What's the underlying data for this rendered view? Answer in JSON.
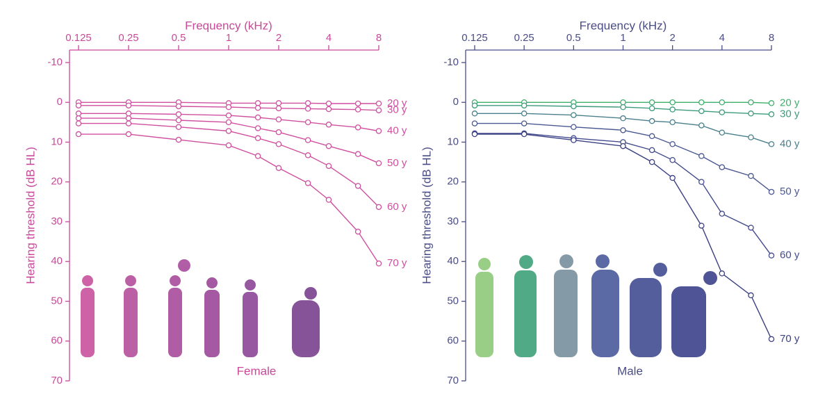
{
  "chart_data": [
    {
      "type": "line",
      "x_label": "Frequency (kHz)",
      "y_label": "Hearing threshold (dB HL)",
      "annotation": "Female",
      "x": [
        0.125,
        0.25,
        0.5,
        1,
        1.5,
        2,
        3,
        4,
        6,
        8
      ],
      "xlim": [
        0.125,
        8
      ],
      "xticks": [
        0.125,
        0.25,
        0.5,
        1,
        2,
        4,
        8
      ],
      "xscale": "log",
      "x_axis_position": "top",
      "ylim": [
        -10,
        70
      ],
      "yticks": [
        -10,
        0,
        10,
        20,
        30,
        40,
        50,
        60,
        70
      ],
      "y_inverted": true,
      "axis_color": "#c9489a",
      "series": [
        {
          "name": "20 y",
          "color": "#cf4f9f",
          "values": [
            0,
            0,
            0,
            0.2,
            0.2,
            0.2,
            0.2,
            0.3,
            0.3,
            0.3
          ]
        },
        {
          "name": "30 y",
          "color": "#cf4f9f",
          "values": [
            0.8,
            0.8,
            1,
            1.2,
            1.4,
            1.5,
            1.6,
            1.7,
            1.8,
            2
          ]
        },
        {
          "name": "40 y",
          "color": "#cf4f9f",
          "values": [
            2.8,
            2.8,
            3,
            3.3,
            3.8,
            4.3,
            5,
            5.6,
            6.3,
            7.2
          ]
        },
        {
          "name": "50 y",
          "color": "#cf4f9f",
          "values": [
            4,
            4,
            4.5,
            5,
            6.5,
            7.5,
            9.5,
            11,
            13,
            15.3
          ]
        },
        {
          "name": "60 y",
          "color": "#cf4f9f",
          "values": [
            5.3,
            5.3,
            6.2,
            7.2,
            9,
            10.5,
            13.3,
            16,
            21,
            26.3
          ]
        },
        {
          "name": "70 y",
          "color": "#cf4f9f",
          "values": [
            8,
            8,
            9.4,
            10.8,
            13.5,
            16.5,
            20.3,
            24.5,
            32.5,
            40.5
          ]
        }
      ]
    },
    {
      "type": "line",
      "x_label": "Frequency (kHz)",
      "y_label": "Hearing threshold (dB HL)",
      "annotation": "Male",
      "x": [
        0.125,
        0.25,
        0.5,
        1,
        1.5,
        2,
        3,
        4,
        6,
        8
      ],
      "xlim": [
        0.125,
        8
      ],
      "xticks": [
        0.125,
        0.25,
        0.5,
        1,
        2,
        4,
        8
      ],
      "xscale": "log",
      "x_axis_position": "top",
      "ylim": [
        -10,
        70
      ],
      "yticks": [
        -10,
        0,
        10,
        20,
        30,
        40,
        50,
        60,
        70
      ],
      "y_inverted": true,
      "axis_color": "#4a4c86",
      "series": [
        {
          "name": "20 y",
          "color": "#3fae6a",
          "values": [
            0,
            0,
            0,
            0,
            0,
            0,
            0,
            0,
            0,
            0.2
          ]
        },
        {
          "name": "30 y",
          "color": "#3d9b7a",
          "values": [
            0.8,
            0.8,
            1,
            1.2,
            1.5,
            1.8,
            2.2,
            2.5,
            2.8,
            3
          ]
        },
        {
          "name": "40 y",
          "color": "#4a7f8c",
          "values": [
            2.8,
            2.8,
            3.2,
            4,
            4.7,
            5,
            5.8,
            7.6,
            8.8,
            10.5
          ]
        },
        {
          "name": "50 y",
          "color": "#4a5892",
          "values": [
            5.3,
            5.3,
            6.2,
            7,
            8.5,
            10.5,
            13.5,
            16.3,
            18.5,
            22.5
          ]
        },
        {
          "name": "60 y",
          "color": "#424b8c",
          "values": [
            7.8,
            7.8,
            9,
            10,
            12,
            14.5,
            20,
            28,
            31.5,
            38.5
          ]
        },
        {
          "name": "70 y",
          "color": "#3b4082",
          "values": [
            8,
            8,
            9.5,
            11,
            15,
            19,
            31,
            43,
            48.5,
            59.5
          ]
        }
      ]
    }
  ]
}
